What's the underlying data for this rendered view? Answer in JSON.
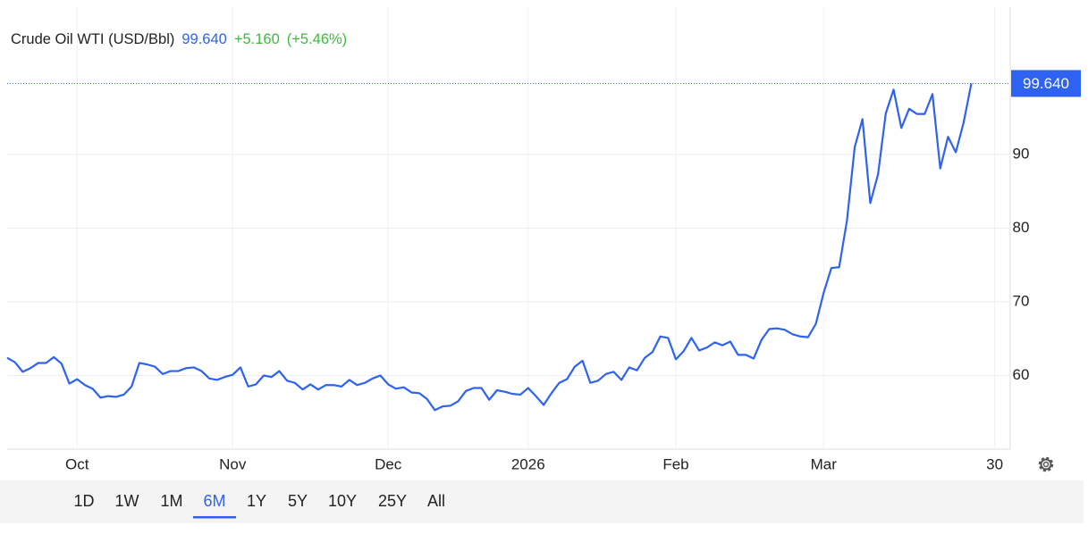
{
  "chart_data": {
    "type": "line",
    "title": "Crude Oil WTI (USD/Bbl)",
    "price_label": "99.640",
    "change_label": "+5.160",
    "change_percent_label": "(+5.46%)",
    "series": [
      {
        "name": "Crude Oil WTI",
        "color": "#2e62f0",
        "values": [
          62.4,
          61.8,
          60.5,
          61,
          61.7,
          61.7,
          62.5,
          61.6,
          58.9,
          59.5,
          58.7,
          58.2,
          57,
          57.2,
          57.1,
          57.4,
          58.5,
          61.7,
          61.5,
          61.2,
          60.2,
          60.6,
          60.6,
          61,
          61.1,
          60.6,
          59.6,
          59.4,
          59.8,
          60.1,
          61.1,
          58.5,
          58.8,
          60,
          59.8,
          60.6,
          59.3,
          59,
          58.1,
          58.8,
          58.1,
          58.7,
          58.7,
          58.5,
          59.4,
          58.7,
          59,
          59.6,
          60,
          58.8,
          58.2,
          58.4,
          57.7,
          57.6,
          56.8,
          55.3,
          55.8,
          55.9,
          56.5,
          57.9,
          58.3,
          58.3,
          56.7,
          58,
          57.8,
          57.5,
          57.4,
          58.3,
          57.2,
          56,
          57.6,
          59,
          59.5,
          61.2,
          62,
          59,
          59.3,
          60.2,
          60.5,
          59.4,
          61.1,
          60.7,
          62.4,
          63.2,
          65.3,
          65.1,
          62.2,
          63.3,
          65.1,
          63.4,
          63.8,
          64.5,
          64.1,
          64.6,
          62.8,
          62.8,
          62.3,
          64.8,
          66.3,
          66.4,
          66.2,
          65.6,
          65.3,
          65.2,
          67,
          71.2,
          74.6,
          74.7,
          81,
          91,
          94.8,
          83.4,
          87.3,
          95.6,
          98.8,
          93.6,
          96.2,
          95.5,
          95.5,
          98.2,
          88.1,
          92.4,
          90.3,
          94.3,
          99.64
        ]
      }
    ],
    "xlim": [
      0,
      129
    ],
    "xticks": [
      {
        "value": 9,
        "label": "Oct"
      },
      {
        "value": 29,
        "label": "Nov"
      },
      {
        "value": 49,
        "label": "Dec"
      },
      {
        "value": 67,
        "label": "2026"
      },
      {
        "value": 86,
        "label": "Feb"
      },
      {
        "value": 105,
        "label": "Mar"
      },
      {
        "value": 127,
        "label": "30"
      }
    ],
    "ylim": [
      50,
      110
    ],
    "yticks": [
      60,
      70,
      80,
      90
    ],
    "grid": true,
    "ranges": [
      "1D",
      "1W",
      "1M",
      "6M",
      "1Y",
      "5Y",
      "10Y",
      "25Y",
      "All"
    ],
    "selected_range": 3
  }
}
